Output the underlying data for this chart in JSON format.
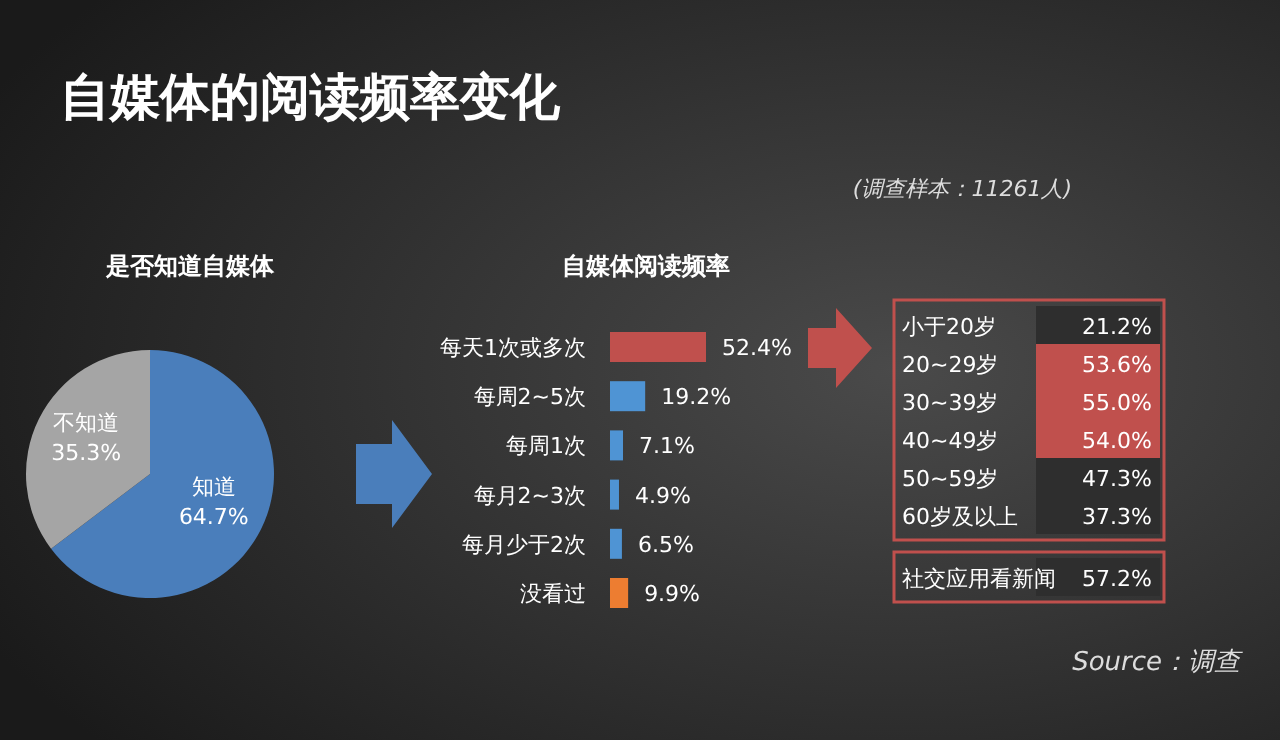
{
  "chart_data": [
    {
      "type": "other",
      "title": "自媒体的阅读频率变化",
      "annotations": [
        "(调查样本：11261人)",
        "Source：调查"
      ]
    },
    {
      "type": "pie",
      "title": "是否知道自媒体",
      "categories": [
        "知道",
        "不知道"
      ],
      "values": [
        64.7,
        35.3
      ],
      "colors": [
        "#4a7ebb",
        "#a5a5a5"
      ],
      "value_labels": [
        "64.7%",
        "35.3%"
      ]
    },
    {
      "type": "bar",
      "orientation": "horizontal",
      "title": "自媒体阅读频率",
      "categories": [
        "每天1次或多次",
        "每周2~5次",
        "每周1次",
        "每月2~3次",
        "每月少于2次",
        "没看过"
      ],
      "values": [
        52.4,
        19.2,
        7.1,
        4.9,
        6.5,
        9.9
      ],
      "colors": [
        "#c0504d",
        "#4f94d4",
        "#4f94d4",
        "#4f94d4",
        "#4f94d4",
        "#ed7d31"
      ],
      "value_labels": [
        "52.4%",
        "19.2%",
        "7.1%",
        "4.9%",
        "6.5%",
        "9.9%"
      ]
    },
    {
      "type": "other",
      "categories": [
        "小于20岁",
        "20~29岁",
        "30~39岁",
        "40~49岁",
        "50~59岁",
        "60岁及以上"
      ],
      "values": [
        21.2,
        53.6,
        55.0,
        54.0,
        47.3,
        37.3
      ],
      "value_labels": [
        "21.2%",
        "53.6%",
        "55.0%",
        "54.0%",
        "47.3%",
        "37.3%"
      ],
      "colors": [
        "#2e2e2e",
        "#c0504d",
        "#c0504d",
        "#c0504d",
        "#2e2e2e",
        "#2e2e2e"
      ]
    },
    {
      "type": "other",
      "categories": [
        "社交应用看新闻"
      ],
      "values": [
        57.2
      ],
      "value_labels": [
        "57.2%"
      ],
      "colors": [
        "#2e2e2e"
      ]
    }
  ]
}
